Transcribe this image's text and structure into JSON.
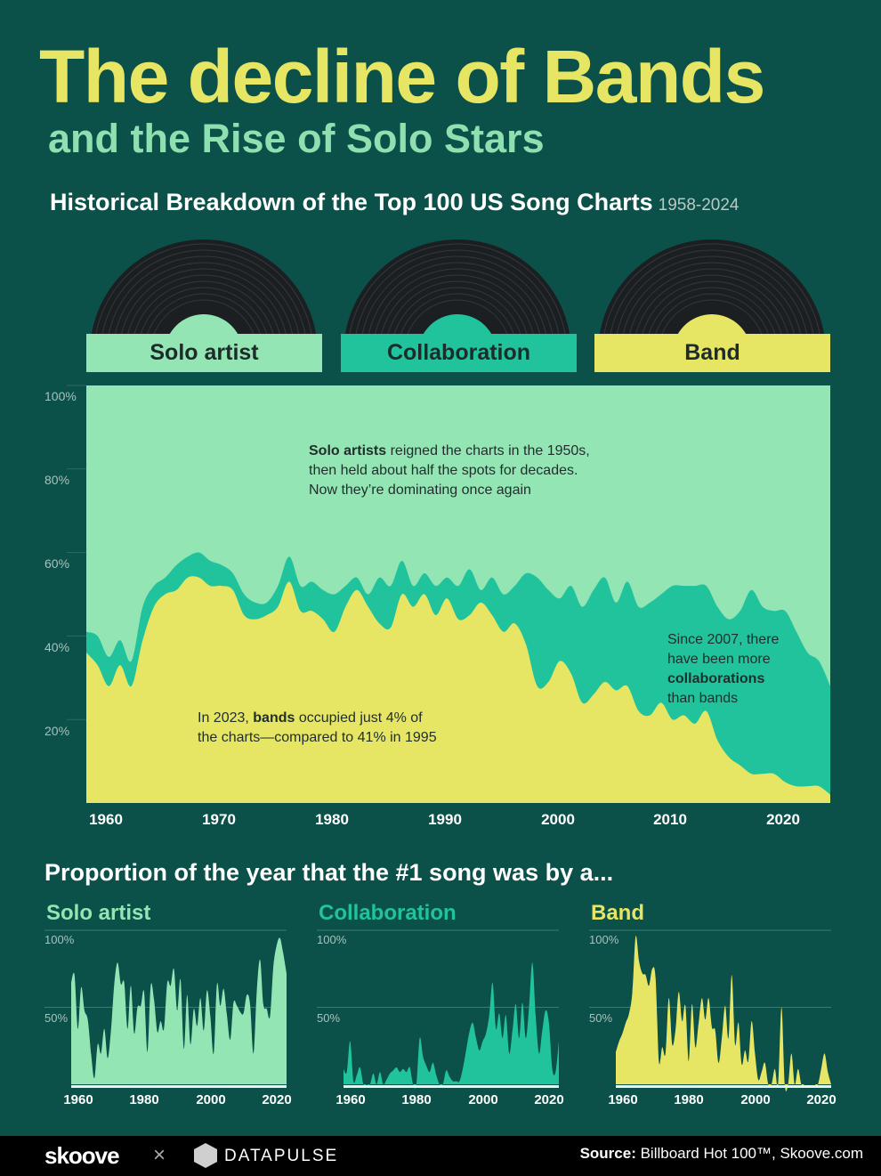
{
  "title": "The decline of Bands",
  "subtitle": "and the Rise of Solo Stars",
  "heading": "Historical Breakdown of the Top 100 US Song Charts",
  "heading_range": "1958-2024",
  "legend": [
    {
      "label": "Solo artist",
      "color": "#93e6b4"
    },
    {
      "label": "Collaboration",
      "color": "#21c39c"
    },
    {
      "label": "Band",
      "color": "#e6e664"
    }
  ],
  "annotations": {
    "solo": {
      "bold": "Solo artists",
      "text": " reigned the charts in the 1950s,",
      "line2": "then held about half the spots for decades.",
      "line3": "Now they’re dominating once again"
    },
    "band": {
      "pre": "In 2023, ",
      "bold": "bands",
      "text": " occupied just 4% of",
      "line2": "the charts—compared to 41% in 1995"
    },
    "collab": {
      "line1": "Since 2007, there",
      "line2": "have been more",
      "bold": "collaborations",
      "line4": "than bands"
    }
  },
  "chart_data": [
    {
      "type": "area",
      "stacked": true,
      "title": "Historical Breakdown of the Top 100 US Song Charts",
      "ylim": [
        0,
        100
      ],
      "xlim": [
        1958,
        2024
      ],
      "y_ticks": [
        "100%",
        "80%",
        "60%",
        "40%",
        "20%"
      ],
      "x_ticks": [
        "1960",
        "1970",
        "1980",
        "1990",
        "2000",
        "2010",
        "2020"
      ],
      "x_start": 1958,
      "series": [
        {
          "name": "Band",
          "color": "#e6e664",
          "values": [
            36,
            33,
            28,
            33,
            28,
            39,
            47,
            50,
            51,
            54,
            54,
            52,
            52,
            51,
            45,
            44,
            45,
            47,
            53,
            46,
            46,
            44,
            41,
            47,
            51,
            47,
            43,
            42,
            50,
            47,
            50,
            45,
            49,
            44,
            45,
            48,
            45,
            41,
            43,
            38,
            28,
            29,
            34,
            31,
            24,
            26,
            29,
            27,
            28,
            22,
            21,
            24,
            20,
            21,
            19,
            22,
            15,
            11,
            9,
            7,
            7,
            7,
            5,
            4,
            4,
            4,
            2
          ]
        },
        {
          "name": "Collaboration",
          "color": "#21c39c",
          "values": [
            5,
            7,
            7,
            6,
            6,
            8,
            5,
            4,
            6,
            5,
            6,
            6,
            5,
            4,
            5,
            4,
            3,
            5,
            6,
            6,
            7,
            7,
            9,
            5,
            3,
            3,
            11,
            10,
            8,
            5,
            5,
            7,
            5,
            8,
            11,
            3,
            9,
            9,
            9,
            17,
            26,
            22,
            15,
            21,
            23,
            25,
            25,
            21,
            25,
            25,
            27,
            26,
            32,
            31,
            33,
            30,
            32,
            33,
            37,
            44,
            40,
            39,
            41,
            37,
            32,
            30,
            26
          ]
        },
        {
          "name": "Solo artist",
          "color": "#93e6b4",
          "values": "remainder to 100%"
        }
      ]
    },
    {
      "type": "area",
      "title": "Solo artist",
      "ylim": [
        0,
        100
      ],
      "y_ticks": [
        "100%",
        "50%"
      ],
      "x_ticks": [
        "1960",
        "1980",
        "2000",
        "2020"
      ],
      "color": "#93e6b4",
      "x": [
        1958,
        1959,
        1960,
        1961,
        1962,
        1963,
        1964,
        1965,
        1966,
        1967,
        1968,
        1969,
        1970,
        1971,
        1972,
        1973,
        1974,
        1975,
        1976,
        1977,
        1978,
        1979,
        1980,
        1981,
        1982,
        1983,
        1984,
        1985,
        1986,
        1987,
        1988,
        1989,
        1990,
        1991,
        1992,
        1993,
        1994,
        1995,
        1996,
        1997,
        1998,
        1999,
        2000,
        2001,
        2002,
        2003,
        2004,
        2005,
        2006,
        2007,
        2008,
        2009,
        2010,
        2011,
        2012,
        2013,
        2014,
        2015,
        2016,
        2017,
        2018,
        2019,
        2020,
        2021,
        2022,
        2023
      ],
      "values": [
        66,
        71,
        36,
        63,
        48,
        42,
        20,
        4,
        26,
        20,
        36,
        17,
        35,
        65,
        79,
        65,
        66,
        36,
        64,
        33,
        50,
        51,
        60,
        21,
        64,
        55,
        34,
        41,
        36,
        66,
        64,
        75,
        48,
        68,
        23,
        58,
        26,
        49,
        38,
        56,
        35,
        61,
        44,
        20,
        65,
        51,
        62,
        45,
        29,
        53,
        51,
        47,
        46,
        58,
        52,
        20,
        60,
        81,
        52,
        49,
        44,
        76,
        90,
        95,
        85,
        72
      ]
    },
    {
      "type": "area",
      "title": "Collaboration",
      "ylim": [
        0,
        100
      ],
      "y_ticks": [
        "100%",
        "50%"
      ],
      "x_ticks": [
        "1960",
        "1980",
        "2000",
        "2020"
      ],
      "color": "#21c39c",
      "x": [
        1958,
        1959,
        1960,
        1961,
        1962,
        1963,
        1964,
        1965,
        1966,
        1967,
        1968,
        1969,
        1970,
        1971,
        1972,
        1973,
        1974,
        1975,
        1976,
        1977,
        1978,
        1979,
        1980,
        1981,
        1982,
        1983,
        1984,
        1985,
        1986,
        1987,
        1988,
        1989,
        1990,
        1991,
        1992,
        1993,
        1994,
        1995,
        1996,
        1997,
        1998,
        1999,
        2000,
        2001,
        2002,
        2003,
        2004,
        2005,
        2006,
        2007,
        2008,
        2009,
        2010,
        2011,
        2012,
        2013,
        2014,
        2015,
        2016,
        2017,
        2018,
        2019,
        2020,
        2021,
        2022,
        2023
      ],
      "values": [
        10,
        8,
        28,
        2,
        6,
        11,
        0,
        0,
        0,
        7,
        0,
        8,
        0,
        3,
        7,
        9,
        11,
        8,
        10,
        8,
        11,
        0,
        0,
        30,
        18,
        12,
        8,
        14,
        6,
        0,
        0,
        9,
        5,
        2,
        2,
        2,
        10,
        22,
        34,
        40,
        30,
        22,
        28,
        33,
        45,
        66,
        36,
        46,
        30,
        45,
        20,
        35,
        52,
        30,
        53,
        30,
        50,
        79,
        45,
        20,
        35,
        48,
        40,
        10,
        8,
        28
      ]
    },
    {
      "type": "area",
      "title": "Band",
      "ylim": [
        0,
        100
      ],
      "y_ticks": [
        "100%",
        "50%"
      ],
      "x_ticks": [
        "1960",
        "1980",
        "2000",
        "2020"
      ],
      "color": "#e6e664",
      "x": [
        1958,
        1959,
        1960,
        1961,
        1962,
        1963,
        1964,
        1965,
        1966,
        1967,
        1968,
        1969,
        1970,
        1971,
        1972,
        1973,
        1974,
        1975,
        1976,
        1977,
        1978,
        1979,
        1980,
        1981,
        1982,
        1983,
        1984,
        1985,
        1986,
        1987,
        1988,
        1989,
        1990,
        1991,
        1992,
        1993,
        1994,
        1995,
        1996,
        1997,
        1998,
        1999,
        2000,
        2001,
        2002,
        2003,
        2004,
        2005,
        2006,
        2007,
        2008,
        2009,
        2010,
        2011,
        2012,
        2013,
        2014,
        2015,
        2016,
        2017,
        2018,
        2019,
        2020,
        2021,
        2022,
        2023
      ],
      "values": [
        21,
        28,
        33,
        40,
        46,
        60,
        96,
        80,
        72,
        71,
        64,
        75,
        69,
        15,
        24,
        20,
        56,
        26,
        35,
        60,
        41,
        51,
        15,
        52,
        24,
        40,
        56,
        42,
        56,
        37,
        35,
        14,
        30,
        51,
        30,
        71,
        26,
        40,
        13,
        22,
        15,
        41,
        20,
        3,
        8,
        14,
        0,
        0,
        10,
        0,
        50,
        0,
        0,
        20,
        0,
        10,
        0,
        0,
        0,
        0,
        0,
        0,
        10,
        20,
        8,
        0
      ]
    }
  ],
  "sub_heading": "Proportion of the year that the #1 song was by a...",
  "footer": {
    "brand1": "skoove",
    "cross": "×",
    "brand2": "DATAPULSE",
    "source_label": "Source:",
    "source_text": " Billboard Hot 100™, Skoove.com"
  }
}
